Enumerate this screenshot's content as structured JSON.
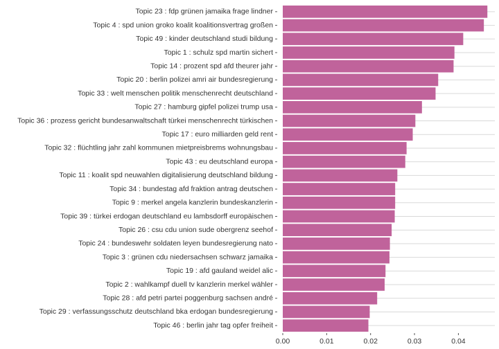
{
  "chart_data": {
    "type": "bar",
    "orientation": "horizontal",
    "title": "",
    "xlabel": "",
    "ylabel": "",
    "categories": [
      "Topic 23 : fdp grünen jamaika frage lindner",
      "Topic 4 : spd union groko koalit koalitionsvertrag großen",
      "Topic 49 : kinder deutschland studi bildung",
      "Topic 1 : schulz spd martin sichert",
      "Topic 14 : prozent spd afd theurer jahr",
      "Topic 20 : berlin polizei amri air bundesregierung",
      "Topic 33 : welt menschen politik menschenrecht deutschland",
      "Topic 27 : hamburg gipfel polizei trump usa",
      "Topic 36 : prozess gericht bundesanwaltschaft türkei menschenrecht türkischen",
      "Topic 17 : euro milliarden geld rent",
      "Topic 32 : flüchtling jahr zahl kommunen mietpreisbrems wohnungsbau",
      "Topic 43 : eu deutschland europa",
      "Topic 11 : koalit spd neuwahlen digitalisierung deutschland bildung",
      "Topic 34 : bundestag afd fraktion antrag deutschen",
      "Topic 9 : merkel angela kanzlerin bundeskanzlerin",
      "Topic 39 : türkei erdogan deutschland eu lambsdorff europäischen",
      "Topic 26 : csu cdu union sude obergrenz seehof",
      "Topic 24 : bundeswehr soldaten leyen bundesregierung nato",
      "Topic 3 : grünen cdu niedersachsen schwarz jamaika",
      "Topic 19 : afd gauland weidel alic",
      "Topic 2 : wahlkampf duell tv kanzlerin merkel wähler",
      "Topic 28 : afd petri partei poggenburg sachsen andré",
      "Topic 29 : verfassungsschutz deutschland bka erdogan bundesregierung",
      "Topic 46 : berlin jahr tag opfer freiheit"
    ],
    "values": [
      0.0466,
      0.0458,
      0.0411,
      0.0391,
      0.0389,
      0.0354,
      0.0348,
      0.0317,
      0.0302,
      0.0296,
      0.0282,
      0.0279,
      0.0261,
      0.0256,
      0.0256,
      0.0255,
      0.0248,
      0.0244,
      0.0243,
      0.0234,
      0.0232,
      0.0215,
      0.0198,
      0.0195
    ],
    "xlim": [
      0,
      0.0483
    ],
    "xticks": [
      0.0,
      0.01,
      0.02,
      0.03,
      0.04
    ],
    "xtick_labels": [
      "0.00",
      "0.01",
      "0.02",
      "0.03",
      "0.04"
    ],
    "bar_color": "#c0639b",
    "grid": true,
    "legend": "none"
  }
}
